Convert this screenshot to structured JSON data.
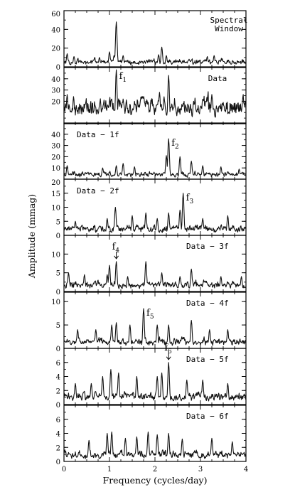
{
  "chart_data": {
    "type": "line",
    "xlabel": "Frequency (cycles/day)",
    "ylabel": "Amplitude (mmag)",
    "xlim": [
      0,
      4
    ],
    "x_ticks": [
      "0",
      "1",
      "2",
      "3",
      "4"
    ],
    "panels": [
      {
        "labels": [
          "Spectral",
          "Window"
        ],
        "ylim": [
          0,
          60
        ],
        "y_ticks": [
          "0",
          "20",
          "40",
          "60"
        ],
        "peak_label": null,
        "peaks": [
          {
            "x": 0.07,
            "a": 14
          },
          {
            "x": 0.22,
            "a": 11
          },
          {
            "x": 0.78,
            "a": 10
          },
          {
            "x": 1.0,
            "a": 16
          },
          {
            "x": 1.1,
            "a": 12
          },
          {
            "x": 1.15,
            "a": 48
          },
          {
            "x": 1.3,
            "a": 12
          },
          {
            "x": 2.08,
            "a": 13
          },
          {
            "x": 2.15,
            "a": 21
          },
          {
            "x": 2.25,
            "a": 12
          },
          {
            "x": 3.15,
            "a": 11
          },
          {
            "x": 3.3,
            "a": 12
          }
        ],
        "noise_level": 5
      },
      {
        "labels": [
          "Data"
        ],
        "ylim": [
          0,
          50
        ],
        "y_ticks": [
          "20",
          "30",
          "40"
        ],
        "peak_label": {
          "text": "f",
          "sub": "1"
        },
        "peaks": [
          {
            "x": 0.07,
            "a": 26
          },
          {
            "x": 0.88,
            "a": 21
          },
          {
            "x": 1.05,
            "a": 22
          },
          {
            "x": 1.15,
            "a": 48
          },
          {
            "x": 1.3,
            "a": 22
          },
          {
            "x": 1.85,
            "a": 19
          },
          {
            "x": 2.1,
            "a": 28
          },
          {
            "x": 2.2,
            "a": 24
          },
          {
            "x": 2.3,
            "a": 43
          },
          {
            "x": 2.85,
            "a": 20
          },
          {
            "x": 3.25,
            "a": 26
          },
          {
            "x": 3.5,
            "a": 19
          }
        ],
        "noise_level": 14
      },
      {
        "labels": [
          "Data − 1f"
        ],
        "ylim": [
          0,
          50
        ],
        "y_ticks": [
          "10",
          "20",
          "30",
          "40"
        ],
        "peak_label": {
          "text": "f",
          "sub": "2"
        },
        "peaks": [
          {
            "x": 0.07,
            "a": 12
          },
          {
            "x": 0.85,
            "a": 10
          },
          {
            "x": 1.15,
            "a": 12
          },
          {
            "x": 1.3,
            "a": 14
          },
          {
            "x": 1.55,
            "a": 11
          },
          {
            "x": 2.25,
            "a": 21
          },
          {
            "x": 2.3,
            "a": 36
          },
          {
            "x": 2.55,
            "a": 20
          },
          {
            "x": 2.8,
            "a": 16
          },
          {
            "x": 3.05,
            "a": 12
          },
          {
            "x": 3.45,
            "a": 11
          },
          {
            "x": 3.85,
            "a": 9
          }
        ],
        "noise_level": 4
      },
      {
        "labels": [
          "Data − 2f"
        ],
        "ylim": [
          0,
          20
        ],
        "y_ticks": [
          "0",
          "5",
          "10",
          "15",
          "20"
        ],
        "peak_label": {
          "text": "f",
          "sub": "3"
        },
        "peaks": [
          {
            "x": 0.25,
            "a": 5
          },
          {
            "x": 0.95,
            "a": 6
          },
          {
            "x": 1.13,
            "a": 10
          },
          {
            "x": 1.5,
            "a": 7
          },
          {
            "x": 1.8,
            "a": 8
          },
          {
            "x": 2.05,
            "a": 6
          },
          {
            "x": 2.3,
            "a": 8
          },
          {
            "x": 2.55,
            "a": 9
          },
          {
            "x": 2.62,
            "a": 15
          },
          {
            "x": 3.05,
            "a": 6
          },
          {
            "x": 3.6,
            "a": 7
          }
        ],
        "noise_level": 2.2
      },
      {
        "labels": [
          "Data − 3f"
        ],
        "ylim": [
          0,
          15
        ],
        "y_ticks": [
          "0",
          "5",
          "10"
        ],
        "peak_label": {
          "text": "f",
          "sub": "4",
          "arrow": true
        },
        "peaks": [
          {
            "x": 0.1,
            "a": 5
          },
          {
            "x": 0.45,
            "a": 4.5
          },
          {
            "x": 0.95,
            "a": 4.5
          },
          {
            "x": 1.0,
            "a": 7
          },
          {
            "x": 1.15,
            "a": 8
          },
          {
            "x": 1.4,
            "a": 4
          },
          {
            "x": 1.8,
            "a": 8
          },
          {
            "x": 2.15,
            "a": 5
          },
          {
            "x": 2.55,
            "a": 4
          },
          {
            "x": 2.8,
            "a": 6
          },
          {
            "x": 3.45,
            "a": 4
          },
          {
            "x": 3.9,
            "a": 4
          }
        ],
        "noise_level": 1.6
      },
      {
        "labels": [
          "Data − 4f"
        ],
        "ylim": [
          0,
          12
        ],
        "y_ticks": [
          "0",
          "5",
          "10"
        ],
        "peak_label": {
          "text": "f",
          "sub": "5"
        },
        "peaks": [
          {
            "x": 0.3,
            "a": 4
          },
          {
            "x": 0.7,
            "a": 4
          },
          {
            "x": 1.05,
            "a": 5
          },
          {
            "x": 1.15,
            "a": 5.5
          },
          {
            "x": 1.45,
            "a": 5
          },
          {
            "x": 1.75,
            "a": 8.5
          },
          {
            "x": 2.05,
            "a": 5
          },
          {
            "x": 2.3,
            "a": 5
          },
          {
            "x": 2.8,
            "a": 6
          },
          {
            "x": 3.2,
            "a": 4
          },
          {
            "x": 3.6,
            "a": 4
          }
        ],
        "noise_level": 1.3
      },
      {
        "labels": [
          "Data − 5f"
        ],
        "ylim": [
          0,
          8
        ],
        "y_ticks": [
          "0",
          "2",
          "4",
          "6"
        ],
        "peak_label": {
          "text": "f",
          "sub": "6",
          "arrow": true
        },
        "peaks": [
          {
            "x": 0.25,
            "a": 3
          },
          {
            "x": 0.6,
            "a": 3
          },
          {
            "x": 0.85,
            "a": 4
          },
          {
            "x": 1.03,
            "a": 5
          },
          {
            "x": 1.2,
            "a": 4.5
          },
          {
            "x": 1.6,
            "a": 4
          },
          {
            "x": 2.05,
            "a": 4
          },
          {
            "x": 2.15,
            "a": 4.5
          },
          {
            "x": 2.3,
            "a": 6
          },
          {
            "x": 2.7,
            "a": 3.5
          },
          {
            "x": 3.05,
            "a": 3.5
          },
          {
            "x": 3.6,
            "a": 3
          }
        ],
        "noise_level": 1
      },
      {
        "labels": [
          "Data − 6f"
        ],
        "ylim": [
          0,
          8
        ],
        "y_ticks": [
          "0",
          "2",
          "4",
          "6"
        ],
        "peak_label": null,
        "peaks": [
          {
            "x": 0.55,
            "a": 3
          },
          {
            "x": 0.95,
            "a": 4
          },
          {
            "x": 1.05,
            "a": 4.2
          },
          {
            "x": 1.35,
            "a": 3.3
          },
          {
            "x": 1.6,
            "a": 3.5
          },
          {
            "x": 1.85,
            "a": 4.2
          },
          {
            "x": 2.05,
            "a": 3.8
          },
          {
            "x": 2.3,
            "a": 4
          },
          {
            "x": 2.6,
            "a": 3.2
          },
          {
            "x": 3.25,
            "a": 3.3
          },
          {
            "x": 3.7,
            "a": 2.8
          }
        ],
        "noise_level": 0.9
      }
    ]
  }
}
